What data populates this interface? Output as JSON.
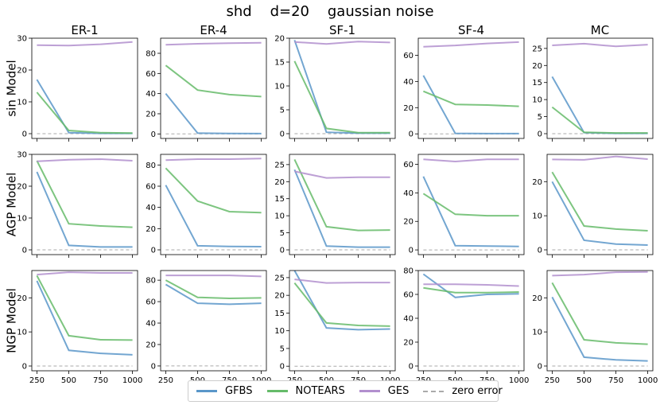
{
  "figure": {
    "title": "shd    d=20    gaussian noise",
    "row_labels": [
      "sin Model",
      "AGP Model",
      "NGP Model"
    ],
    "col_titles": [
      "ER-1",
      "ER-4",
      "SF-1",
      "SF-4",
      "MC"
    ],
    "colors": {
      "GFBS": "#5a97c9",
      "NOTEARS": "#66bb6a",
      "GES": "#b28fce",
      "zero": "#aaaaaa"
    }
  },
  "legend": {
    "items": [
      {
        "label": "GFBS",
        "color": "#5a97c9",
        "style": "solid"
      },
      {
        "label": "NOTEARS",
        "color": "#66bb6a",
        "style": "solid"
      },
      {
        "label": "GES",
        "color": "#b28fce",
        "style": "solid"
      },
      {
        "label": "zero error",
        "color": "#aaaaaa",
        "style": "dashed"
      }
    ]
  },
  "chart_data": [
    {
      "type": "line",
      "row": 0,
      "col": 0,
      "title": "ER-1",
      "ylabel": "sin Model",
      "x": [
        250,
        500,
        750,
        1000
      ],
      "ylim": [
        -1.5,
        30
      ],
      "yticks": [
        0,
        10,
        20,
        30
      ],
      "series": [
        {
          "name": "GFBS",
          "values": [
            17,
            0.3,
            0.1,
            0.1
          ]
        },
        {
          "name": "NOTEARS",
          "values": [
            13,
            1,
            0.3,
            0.2
          ]
        },
        {
          "name": "GES",
          "values": [
            27.8,
            27.7,
            28.1,
            28.8
          ]
        }
      ]
    },
    {
      "type": "line",
      "row": 0,
      "col": 1,
      "title": "ER-4",
      "ylabel": "",
      "x": [
        250,
        500,
        750,
        1000
      ],
      "ylim": [
        -4.5,
        95
      ],
      "yticks": [
        0,
        20,
        40,
        60,
        80
      ],
      "series": [
        {
          "name": "GFBS",
          "values": [
            40,
            0.8,
            0.4,
            0.3
          ]
        },
        {
          "name": "NOTEARS",
          "values": [
            68,
            43.5,
            39,
            37
          ]
        },
        {
          "name": "GES",
          "values": [
            88.5,
            89.5,
            90,
            90.5
          ]
        }
      ]
    },
    {
      "type": "line",
      "row": 0,
      "col": 2,
      "title": "SF-1",
      "ylabel": "",
      "x": [
        250,
        500,
        750,
        1000
      ],
      "ylim": [
        -1,
        20
      ],
      "yticks": [
        0,
        5,
        10,
        15,
        20
      ],
      "series": [
        {
          "name": "GFBS",
          "values": [
            19.6,
            0.3,
            0.1,
            0.1
          ]
        },
        {
          "name": "NOTEARS",
          "values": [
            15.2,
            1.1,
            0.2,
            0.2
          ]
        },
        {
          "name": "GES",
          "values": [
            19.2,
            18.8,
            19.3,
            19.1
          ]
        }
      ]
    },
    {
      "type": "line",
      "row": 0,
      "col": 3,
      "title": "SF-4",
      "ylabel": "",
      "x": [
        250,
        500,
        750,
        1000
      ],
      "ylim": [
        -3.5,
        73
      ],
      "yticks": [
        0,
        20,
        40,
        60
      ],
      "series": [
        {
          "name": "GFBS",
          "values": [
            44.5,
            0.4,
            0.2,
            0.2
          ]
        },
        {
          "name": "NOTEARS",
          "values": [
            32.5,
            22.5,
            22,
            21
          ]
        },
        {
          "name": "GES",
          "values": [
            66.5,
            67.5,
            69,
            70
          ]
        }
      ]
    },
    {
      "type": "line",
      "row": 0,
      "col": 4,
      "title": "MC",
      "ylabel": "",
      "x": [
        250,
        500,
        750,
        1000
      ],
      "ylim": [
        -1.4,
        28
      ],
      "yticks": [
        0,
        5,
        10,
        15,
        20,
        25
      ],
      "series": [
        {
          "name": "GFBS",
          "values": [
            16.7,
            0.3,
            0.1,
            0.1
          ]
        },
        {
          "name": "NOTEARS",
          "values": [
            7.8,
            0.4,
            0.2,
            0.2
          ]
        },
        {
          "name": "GES",
          "values": [
            25.9,
            26.4,
            25.6,
            26.1
          ]
        }
      ]
    },
    {
      "type": "line",
      "row": 1,
      "col": 0,
      "title": "",
      "ylabel": "AGP Model",
      "x": [
        250,
        500,
        750,
        1000
      ],
      "ylim": [
        -1.5,
        30
      ],
      "yticks": [
        0,
        10,
        20,
        30
      ],
      "series": [
        {
          "name": "GFBS",
          "values": [
            24.5,
            1.4,
            0.9,
            0.9
          ]
        },
        {
          "name": "NOTEARS",
          "values": [
            28,
            8.2,
            7.5,
            7.1
          ]
        },
        {
          "name": "GES",
          "values": [
            27.8,
            28.3,
            28.5,
            28
          ]
        }
      ]
    },
    {
      "type": "line",
      "row": 1,
      "col": 1,
      "title": "",
      "ylabel": "",
      "x": [
        250,
        500,
        750,
        1000
      ],
      "ylim": [
        -4.5,
        90
      ],
      "yticks": [
        0,
        20,
        40,
        60,
        80
      ],
      "series": [
        {
          "name": "GFBS",
          "values": [
            61,
            3.8,
            3.2,
            3
          ]
        },
        {
          "name": "NOTEARS",
          "values": [
            77,
            46,
            36,
            35
          ]
        },
        {
          "name": "GES",
          "values": [
            84.5,
            85.5,
            85.5,
            86
          ]
        }
      ]
    },
    {
      "type": "line",
      "row": 1,
      "col": 2,
      "title": "",
      "ylabel": "",
      "x": [
        250,
        500,
        750,
        1000
      ],
      "ylim": [
        -1.4,
        28
      ],
      "yticks": [
        0,
        5,
        10,
        15,
        20,
        25
      ],
      "series": [
        {
          "name": "GFBS",
          "values": [
            23.5,
            1.1,
            0.8,
            0.8
          ]
        },
        {
          "name": "NOTEARS",
          "values": [
            26.5,
            6.8,
            5.7,
            5.8
          ]
        },
        {
          "name": "GES",
          "values": [
            23,
            21.1,
            21.3,
            21.3
          ]
        }
      ]
    },
    {
      "type": "line",
      "row": 1,
      "col": 3,
      "title": "",
      "ylabel": "",
      "x": [
        250,
        500,
        750,
        1000
      ],
      "ylim": [
        -3.3,
        67
      ],
      "yticks": [
        0,
        20,
        40,
        60
      ],
      "series": [
        {
          "name": "GFBS",
          "values": [
            51.5,
            3,
            2.7,
            2.4
          ]
        },
        {
          "name": "NOTEARS",
          "values": [
            39.5,
            25,
            24,
            24
          ]
        },
        {
          "name": "GES",
          "values": [
            63.5,
            62,
            63.5,
            63.5
          ]
        }
      ]
    },
    {
      "type": "line",
      "row": 1,
      "col": 4,
      "title": "",
      "ylabel": "",
      "x": [
        250,
        500,
        750,
        1000
      ],
      "ylim": [
        -1.4,
        28
      ],
      "yticks": [
        0,
        10,
        20
      ],
      "series": [
        {
          "name": "GFBS",
          "values": [
            20,
            2.8,
            1.7,
            1.4
          ]
        },
        {
          "name": "NOTEARS",
          "values": [
            22.8,
            7,
            6.1,
            5.6
          ]
        },
        {
          "name": "GES",
          "values": [
            26.5,
            26.4,
            27.4,
            26.6
          ]
        }
      ]
    },
    {
      "type": "line",
      "row": 2,
      "col": 0,
      "title": "",
      "ylabel": "NGP Model",
      "x": [
        250,
        500,
        750,
        1000
      ],
      "ylim": [
        -1.4,
        28
      ],
      "yticks": [
        0,
        10,
        20
      ],
      "series": [
        {
          "name": "GFBS",
          "values": [
            25,
            4.6,
            3.7,
            3.3
          ]
        },
        {
          "name": "NOTEARS",
          "values": [
            26.5,
            8.9,
            7.7,
            7.6
          ]
        },
        {
          "name": "GES",
          "values": [
            26.8,
            27.5,
            27.3,
            27.3
          ]
        }
      ]
    },
    {
      "type": "line",
      "row": 2,
      "col": 1,
      "title": "",
      "ylabel": "",
      "x": [
        250,
        500,
        750,
        1000
      ],
      "ylim": [
        -4.5,
        89
      ],
      "yticks": [
        0,
        20,
        40,
        60,
        80
      ],
      "series": [
        {
          "name": "GFBS",
          "values": [
            76,
            58.5,
            57.5,
            58.5
          ]
        },
        {
          "name": "NOTEARS",
          "values": [
            80,
            64,
            63,
            63.5
          ]
        },
        {
          "name": "GES",
          "values": [
            84.5,
            84.5,
            84.5,
            83.5
          ]
        }
      ]
    },
    {
      "type": "line",
      "row": 2,
      "col": 2,
      "title": "",
      "ylabel": "",
      "x": [
        250,
        500,
        750,
        1000
      ],
      "ylim": [
        -1.3,
        27
      ],
      "yticks": [
        0,
        5,
        10,
        15,
        20,
        25
      ],
      "series": [
        {
          "name": "GFBS",
          "values": [
            27,
            10.8,
            10.3,
            10.5
          ]
        },
        {
          "name": "NOTEARS",
          "values": [
            23.5,
            12.2,
            11.5,
            11.3
          ]
        },
        {
          "name": "GES",
          "values": [
            24.5,
            23.5,
            23.6,
            23.6
          ]
        }
      ]
    },
    {
      "type": "line",
      "row": 2,
      "col": 3,
      "title": "",
      "ylabel": "",
      "x": [
        250,
        500,
        750,
        1000
      ],
      "ylim": [
        -4,
        80
      ],
      "yticks": [
        0,
        20,
        40,
        60,
        80
      ],
      "series": [
        {
          "name": "GFBS",
          "values": [
            77,
            57.5,
            60,
            60.5
          ]
        },
        {
          "name": "NOTEARS",
          "values": [
            65.5,
            61.5,
            61.5,
            62
          ]
        },
        {
          "name": "GES",
          "values": [
            68.5,
            68.5,
            68,
            67
          ]
        }
      ]
    },
    {
      "type": "line",
      "row": 2,
      "col": 4,
      "title": "",
      "ylabel": "",
      "x": [
        250,
        500,
        750,
        1000
      ],
      "ylim": [
        -1.4,
        28
      ],
      "yticks": [
        0,
        10,
        20
      ],
      "series": [
        {
          "name": "GFBS",
          "values": [
            20.2,
            2.6,
            1.8,
            1.5
          ]
        },
        {
          "name": "NOTEARS",
          "values": [
            24.4,
            7.7,
            6.8,
            6.4
          ]
        },
        {
          "name": "GES",
          "values": [
            26.5,
            26.8,
            27.5,
            27.6
          ]
        }
      ]
    }
  ]
}
